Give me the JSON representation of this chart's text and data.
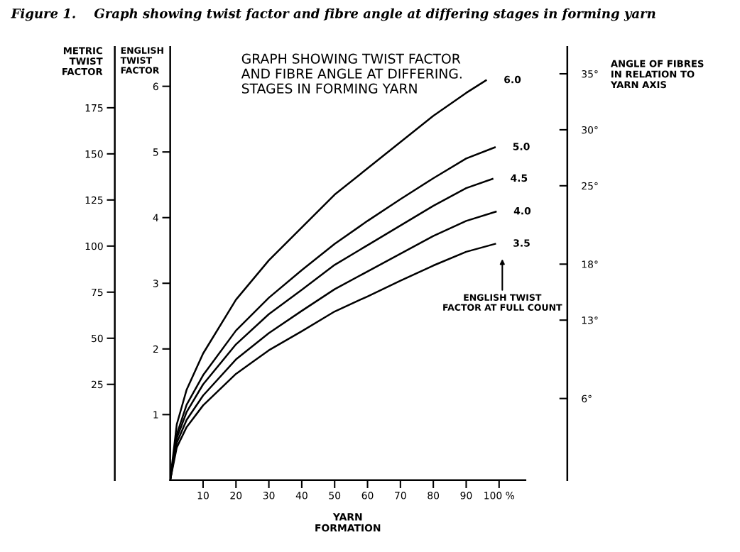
{
  "chart_data": {
    "type": "line",
    "title": "GRAPH SHOWING TWIST FACTOR\nAND FIBRE ANGLE AT DIFFERING.\nSTAGES IN FORMING YARN",
    "annotations": [
      "Figure 1.    Graph showing twist factor and fibre angle at differing stages in forming yarn",
      "ENGLISH TWIST\nFACTOR AT FULL COUNT"
    ],
    "xlabel": "YARN\nFORMATION",
    "ylabel": "ENGLISH\nTWIST\nFACTOR",
    "y3label": "METRIC\nTWIST\nFACTOR",
    "y2label": "ANGLE OF FIBRES\nIN RELATION TO\nYARN AXIS",
    "xlim": [
      0,
      108
    ],
    "xticks": [
      10,
      20,
      30,
      40,
      50,
      60,
      70,
      80,
      90,
      {
        "value": 100,
        "label": "100 %"
      }
    ],
    "ylim": [
      0,
      6.6
    ],
    "yticks": [
      1,
      2,
      3,
      4,
      5,
      6
    ],
    "y3lim": [
      -27,
      208
    ],
    "y3ticks": [
      25,
      50,
      75,
      100,
      125,
      150,
      175
    ],
    "y2lim": [
      -1.3,
      37.4
    ],
    "y2ticks": [
      {
        "value": 6,
        "label": "6°"
      },
      {
        "value": 13,
        "label": "13°"
      },
      {
        "value": 18,
        "label": "18°"
      },
      {
        "value": 25,
        "label": "25°"
      },
      {
        "value": 30,
        "label": "30°"
      },
      {
        "value": 35,
        "label": "35°"
      }
    ],
    "grid": false,
    "legend": false,
    "marker": "none",
    "line_style": "solid",
    "series": [
      {
        "name": "6.0",
        "color": "#000000",
        "x": [
          0,
          2,
          5,
          10,
          20,
          30,
          40,
          50,
          60,
          70,
          80,
          90,
          96
        ],
        "values": [
          0,
          0.85,
          1.38,
          1.93,
          2.75,
          3.35,
          3.85,
          4.35,
          4.75,
          5.15,
          5.55,
          5.9,
          6.09
        ]
      },
      {
        "name": "5.0",
        "color": "#000000",
        "x": [
          0,
          2,
          5,
          10,
          20,
          30,
          40,
          50,
          60,
          70,
          80,
          90,
          98.7
        ],
        "values": [
          0,
          0.7,
          1.15,
          1.6,
          2.28,
          2.78,
          3.2,
          3.6,
          3.95,
          4.28,
          4.6,
          4.9,
          5.07
        ]
      },
      {
        "name": "4.5",
        "color": "#000000",
        "x": [
          0,
          2,
          5,
          10,
          20,
          30,
          40,
          50,
          60,
          70,
          80,
          90,
          98
        ],
        "values": [
          0,
          0.64,
          1.04,
          1.46,
          2.07,
          2.53,
          2.9,
          3.28,
          3.58,
          3.88,
          4.18,
          4.45,
          4.59
        ]
      },
      {
        "name": "4.0",
        "color": "#000000",
        "x": [
          0,
          2,
          5,
          10,
          20,
          30,
          40,
          50,
          60,
          70,
          80,
          90,
          99
        ],
        "values": [
          0,
          0.57,
          0.92,
          1.29,
          1.84,
          2.24,
          2.58,
          2.91,
          3.18,
          3.45,
          3.72,
          3.95,
          4.09
        ]
      },
      {
        "name": "3.5",
        "color": "#000000",
        "x": [
          0,
          2,
          5,
          10,
          20,
          30,
          40,
          50,
          60,
          70,
          80,
          90,
          98.8
        ],
        "values": [
          0,
          0.5,
          0.81,
          1.14,
          1.62,
          1.98,
          2.27,
          2.57,
          2.8,
          3.04,
          3.27,
          3.48,
          3.6
        ]
      }
    ]
  }
}
